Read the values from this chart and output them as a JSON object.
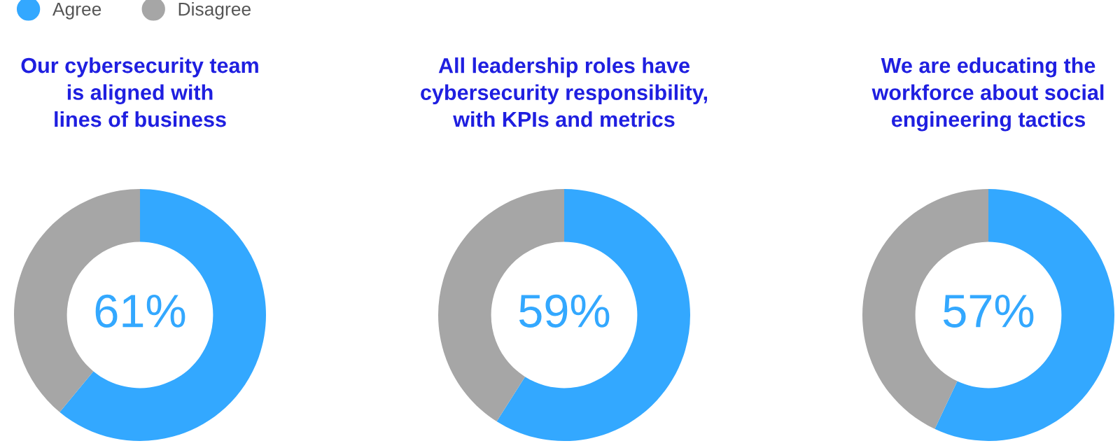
{
  "chart_data": [
    {
      "type": "donut",
      "title": "Our cybersecurity team\nis aligned with\nlines of business",
      "categories": [
        "Agree",
        "Disagree"
      ],
      "values": [
        61,
        39
      ],
      "colors": [
        "#33a8ff",
        "#a6a6a6"
      ],
      "value_labels": [
        "61%",
        null
      ],
      "legend": "top left"
    },
    {
      "type": "donut",
      "title": "All leadership roles have\ncybersecurity responsibility,\nwith KPIs and metrics",
      "values": [
        59,
        41
      ],
      "colors": [
        "#33a8ff",
        "#a6a6a6"
      ],
      "value_labels": [
        "59%",
        null
      ]
    },
    {
      "type": "donut",
      "title": "We are educating the\nworkforce about social\nengineering tactics",
      "values": [
        57,
        43
      ],
      "colors": [
        "#33a8ff",
        "#a6a6a6"
      ],
      "value_labels": [
        "57%",
        null
      ]
    }
  ]
}
